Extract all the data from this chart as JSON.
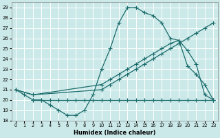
{
  "xlabel": "Humidex (Indice chaleur)",
  "xlim": [
    -0.5,
    23.5
  ],
  "ylim": [
    18,
    29.5
  ],
  "yticks": [
    18,
    19,
    20,
    21,
    22,
    23,
    24,
    25,
    26,
    27,
    28,
    29
  ],
  "xticks": [
    0,
    1,
    2,
    3,
    4,
    5,
    6,
    7,
    8,
    9,
    10,
    11,
    12,
    13,
    14,
    15,
    16,
    17,
    18,
    19,
    20,
    21,
    22,
    23
  ],
  "bg_color": "#cce9e9",
  "line_color": "#1a6b6b",
  "grid_color": "#b8d8d8",
  "line1_x": [
    0,
    1,
    2,
    3,
    4,
    5,
    6,
    7,
    8,
    9,
    10,
    11,
    12,
    13,
    14,
    15,
    16,
    17,
    18,
    19,
    20,
    21,
    22,
    23
  ],
  "line1_y": [
    21.0,
    20.5,
    20.0,
    20.0,
    19.5,
    19.0,
    18.5,
    18.5,
    19.0,
    20.5,
    23.0,
    25.0,
    27.5,
    29.0,
    29.0,
    28.5,
    28.2,
    27.5,
    26.0,
    25.8,
    24.8,
    23.5,
    20.5,
    20.0
  ],
  "line2_x": [
    0,
    2,
    10,
    11,
    12,
    13,
    14,
    15,
    16,
    17,
    18,
    19,
    20,
    21,
    22,
    23
  ],
  "line2_y": [
    21.0,
    20.5,
    21.5,
    22.0,
    22.5,
    23.0,
    23.5,
    24.0,
    24.5,
    25.0,
    25.5,
    25.8,
    23.3,
    22.5,
    21.5,
    20.0
  ],
  "line3_x": [
    0,
    2,
    10,
    11,
    12,
    13,
    14,
    15,
    16,
    17,
    18,
    19,
    20,
    21,
    22,
    23
  ],
  "line3_y": [
    21.0,
    20.5,
    21.0,
    21.5,
    22.0,
    22.5,
    23.0,
    23.5,
    24.0,
    24.5,
    25.0,
    25.5,
    26.0,
    26.5,
    27.0,
    27.5
  ],
  "line4_x": [
    2,
    3,
    4,
    5,
    6,
    7,
    8,
    9,
    10,
    11,
    12,
    13,
    14,
    15,
    16,
    17,
    18,
    19,
    20,
    21,
    22,
    23
  ],
  "line4_y": [
    20.0,
    20.0,
    20.0,
    20.0,
    20.0,
    20.0,
    20.0,
    20.0,
    20.0,
    20.0,
    20.0,
    20.0,
    20.0,
    20.0,
    20.0,
    20.0,
    20.0,
    20.0,
    20.0,
    20.0,
    20.0,
    20.0
  ]
}
